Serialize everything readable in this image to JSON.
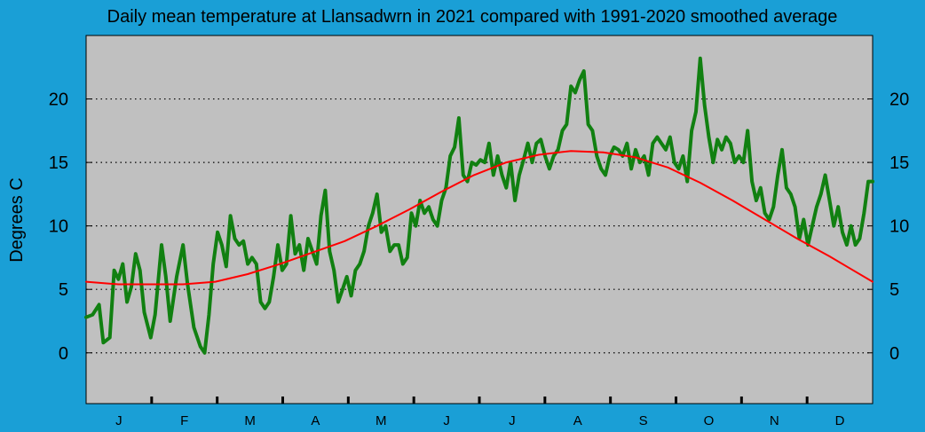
{
  "chart_data": {
    "type": "line",
    "title": "Daily mean temperature at Llansadwrn in 2021 compared with 1991-2020 smoothed average",
    "ylabel": "Degrees  C",
    "xlabel": "",
    "ylim": [
      -4,
      25
    ],
    "xlim": [
      0,
      365
    ],
    "y_ticks": [
      0,
      5,
      10,
      15,
      20
    ],
    "months": [
      "J",
      "F",
      "M",
      "A",
      "M",
      "J",
      "J",
      "A",
      "S",
      "O",
      "N",
      "D"
    ],
    "grid": true,
    "colors": {
      "background": "#1a9fd6",
      "plot_area": "#c0c0c0",
      "daily": "#118011",
      "average": "#ff0000"
    },
    "series": [
      {
        "name": "Daily mean 2021",
        "color": "#118011",
        "points": [
          [
            0,
            2.8
          ],
          [
            3,
            3.0
          ],
          [
            6,
            3.8
          ],
          [
            8,
            0.8
          ],
          [
            11,
            1.2
          ],
          [
            13,
            6.5
          ],
          [
            15,
            5.8
          ],
          [
            17,
            7.0
          ],
          [
            19,
            4.0
          ],
          [
            21,
            5.2
          ],
          [
            23,
            7.8
          ],
          [
            25,
            6.5
          ],
          [
            27,
            3.2
          ],
          [
            30,
            1.2
          ],
          [
            32,
            3.0
          ],
          [
            35,
            8.5
          ],
          [
            37,
            6.0
          ],
          [
            39,
            2.5
          ],
          [
            42,
            6.0
          ],
          [
            45,
            8.5
          ],
          [
            47,
            5.5
          ],
          [
            50,
            2.0
          ],
          [
            53,
            0.5
          ],
          [
            55,
            0.0
          ],
          [
            57,
            3.0
          ],
          [
            59,
            7.0
          ],
          [
            61,
            9.5
          ],
          [
            63,
            8.5
          ],
          [
            65,
            6.8
          ],
          [
            67,
            10.8
          ],
          [
            69,
            9.0
          ],
          [
            71,
            8.5
          ],
          [
            73,
            8.8
          ],
          [
            75,
            7.0
          ],
          [
            77,
            7.5
          ],
          [
            79,
            7.0
          ],
          [
            81,
            4.0
          ],
          [
            83,
            3.5
          ],
          [
            85,
            4.0
          ],
          [
            87,
            6.0
          ],
          [
            89,
            8.5
          ],
          [
            91,
            6.5
          ],
          [
            93,
            7.0
          ],
          [
            95,
            10.8
          ],
          [
            97,
            7.8
          ],
          [
            99,
            8.5
          ],
          [
            101,
            6.5
          ],
          [
            103,
            9.0
          ],
          [
            105,
            8.0
          ],
          [
            107,
            7.0
          ],
          [
            109,
            10.8
          ],
          [
            111,
            12.8
          ],
          [
            113,
            8.0
          ],
          [
            115,
            6.5
          ],
          [
            117,
            4.0
          ],
          [
            119,
            5.0
          ],
          [
            121,
            6.0
          ],
          [
            123,
            4.5
          ],
          [
            125,
            6.5
          ],
          [
            127,
            7.0
          ],
          [
            129,
            8.0
          ],
          [
            131,
            10.0
          ],
          [
            133,
            11.0
          ],
          [
            135,
            12.5
          ],
          [
            137,
            9.5
          ],
          [
            139,
            10.0
          ],
          [
            141,
            8.0
          ],
          [
            143,
            8.5
          ],
          [
            145,
            8.5
          ],
          [
            147,
            7.0
          ],
          [
            149,
            7.5
          ],
          [
            151,
            11.0
          ],
          [
            153,
            10.0
          ],
          [
            155,
            12.0
          ],
          [
            157,
            11.0
          ],
          [
            159,
            11.5
          ],
          [
            161,
            10.5
          ],
          [
            163,
            10.0
          ],
          [
            165,
            12.0
          ],
          [
            167,
            13.0
          ],
          [
            169,
            15.5
          ],
          [
            171,
            16.2
          ],
          [
            173,
            18.5
          ],
          [
            175,
            14.0
          ],
          [
            177,
            13.5
          ],
          [
            179,
            15.0
          ],
          [
            181,
            14.8
          ],
          [
            183,
            15.2
          ],
          [
            185,
            15.0
          ],
          [
            187,
            16.5
          ],
          [
            189,
            14.0
          ],
          [
            191,
            15.5
          ],
          [
            193,
            14.0
          ],
          [
            195,
            13.0
          ],
          [
            197,
            15.0
          ],
          [
            199,
            12.0
          ],
          [
            201,
            14.0
          ],
          [
            203,
            15.2
          ],
          [
            205,
            16.5
          ],
          [
            207,
            15.0
          ],
          [
            209,
            16.5
          ],
          [
            211,
            16.8
          ],
          [
            213,
            15.5
          ],
          [
            215,
            14.5
          ],
          [
            217,
            15.5
          ],
          [
            219,
            16.0
          ],
          [
            221,
            17.5
          ],
          [
            223,
            18.0
          ],
          [
            225,
            21.0
          ],
          [
            227,
            20.5
          ],
          [
            229,
            21.5
          ],
          [
            231,
            22.2
          ],
          [
            233,
            18.0
          ],
          [
            235,
            17.5
          ],
          [
            237,
            15.5
          ],
          [
            239,
            14.5
          ],
          [
            241,
            14.0
          ],
          [
            243,
            15.5
          ],
          [
            245,
            16.2
          ],
          [
            247,
            16.0
          ],
          [
            249,
            15.5
          ],
          [
            251,
            16.5
          ],
          [
            253,
            14.5
          ],
          [
            255,
            16.0
          ],
          [
            257,
            15.0
          ],
          [
            259,
            15.5
          ],
          [
            261,
            14.0
          ],
          [
            263,
            16.5
          ],
          [
            265,
            17.0
          ],
          [
            267,
            16.5
          ],
          [
            269,
            16.0
          ],
          [
            271,
            17.0
          ],
          [
            273,
            15.0
          ],
          [
            275,
            14.5
          ],
          [
            277,
            15.5
          ],
          [
            279,
            13.5
          ],
          [
            281,
            17.5
          ],
          [
            283,
            19.0
          ],
          [
            285,
            23.2
          ],
          [
            287,
            19.5
          ],
          [
            289,
            17.0
          ],
          [
            291,
            15.0
          ],
          [
            293,
            16.8
          ],
          [
            295,
            16.0
          ],
          [
            297,
            17.0
          ],
          [
            299,
            16.5
          ],
          [
            301,
            15.0
          ],
          [
            303,
            15.5
          ],
          [
            305,
            15.0
          ],
          [
            307,
            17.5
          ],
          [
            309,
            13.5
          ],
          [
            311,
            12.0
          ],
          [
            313,
            13.0
          ],
          [
            315,
            11.0
          ],
          [
            317,
            10.5
          ],
          [
            319,
            11.5
          ],
          [
            321,
            14.0
          ],
          [
            323,
            16.0
          ],
          [
            325,
            13.0
          ],
          [
            327,
            12.5
          ],
          [
            329,
            11.5
          ],
          [
            331,
            9.0
          ],
          [
            333,
            10.5
          ],
          [
            335,
            8.5
          ],
          [
            337,
            10.0
          ],
          [
            339,
            11.5
          ],
          [
            341,
            12.5
          ],
          [
            343,
            14.0
          ],
          [
            345,
            12.0
          ],
          [
            347,
            10.0
          ],
          [
            349,
            11.5
          ],
          [
            351,
            9.5
          ],
          [
            353,
            8.5
          ],
          [
            355,
            10.0
          ],
          [
            357,
            8.5
          ],
          [
            359,
            9.0
          ],
          [
            361,
            11.0
          ],
          [
            363,
            13.5
          ],
          [
            365,
            13.5
          ]
        ]
      },
      {
        "name": "1991-2020 smoothed average",
        "color": "#ff0000",
        "points": [
          [
            0,
            5.6
          ],
          [
            15,
            5.4
          ],
          [
            30,
            5.4
          ],
          [
            45,
            5.4
          ],
          [
            60,
            5.6
          ],
          [
            75,
            6.2
          ],
          [
            90,
            7.0
          ],
          [
            105,
            7.9
          ],
          [
            120,
            8.8
          ],
          [
            135,
            10.0
          ],
          [
            150,
            11.3
          ],
          [
            165,
            12.7
          ],
          [
            180,
            14.0
          ],
          [
            195,
            15.0
          ],
          [
            210,
            15.6
          ],
          [
            225,
            15.9
          ],
          [
            240,
            15.8
          ],
          [
            255,
            15.4
          ],
          [
            270,
            14.6
          ],
          [
            285,
            13.4
          ],
          [
            300,
            12.0
          ],
          [
            315,
            10.5
          ],
          [
            330,
            9.0
          ],
          [
            345,
            7.6
          ],
          [
            355,
            6.6
          ],
          [
            365,
            5.6
          ]
        ]
      }
    ]
  }
}
